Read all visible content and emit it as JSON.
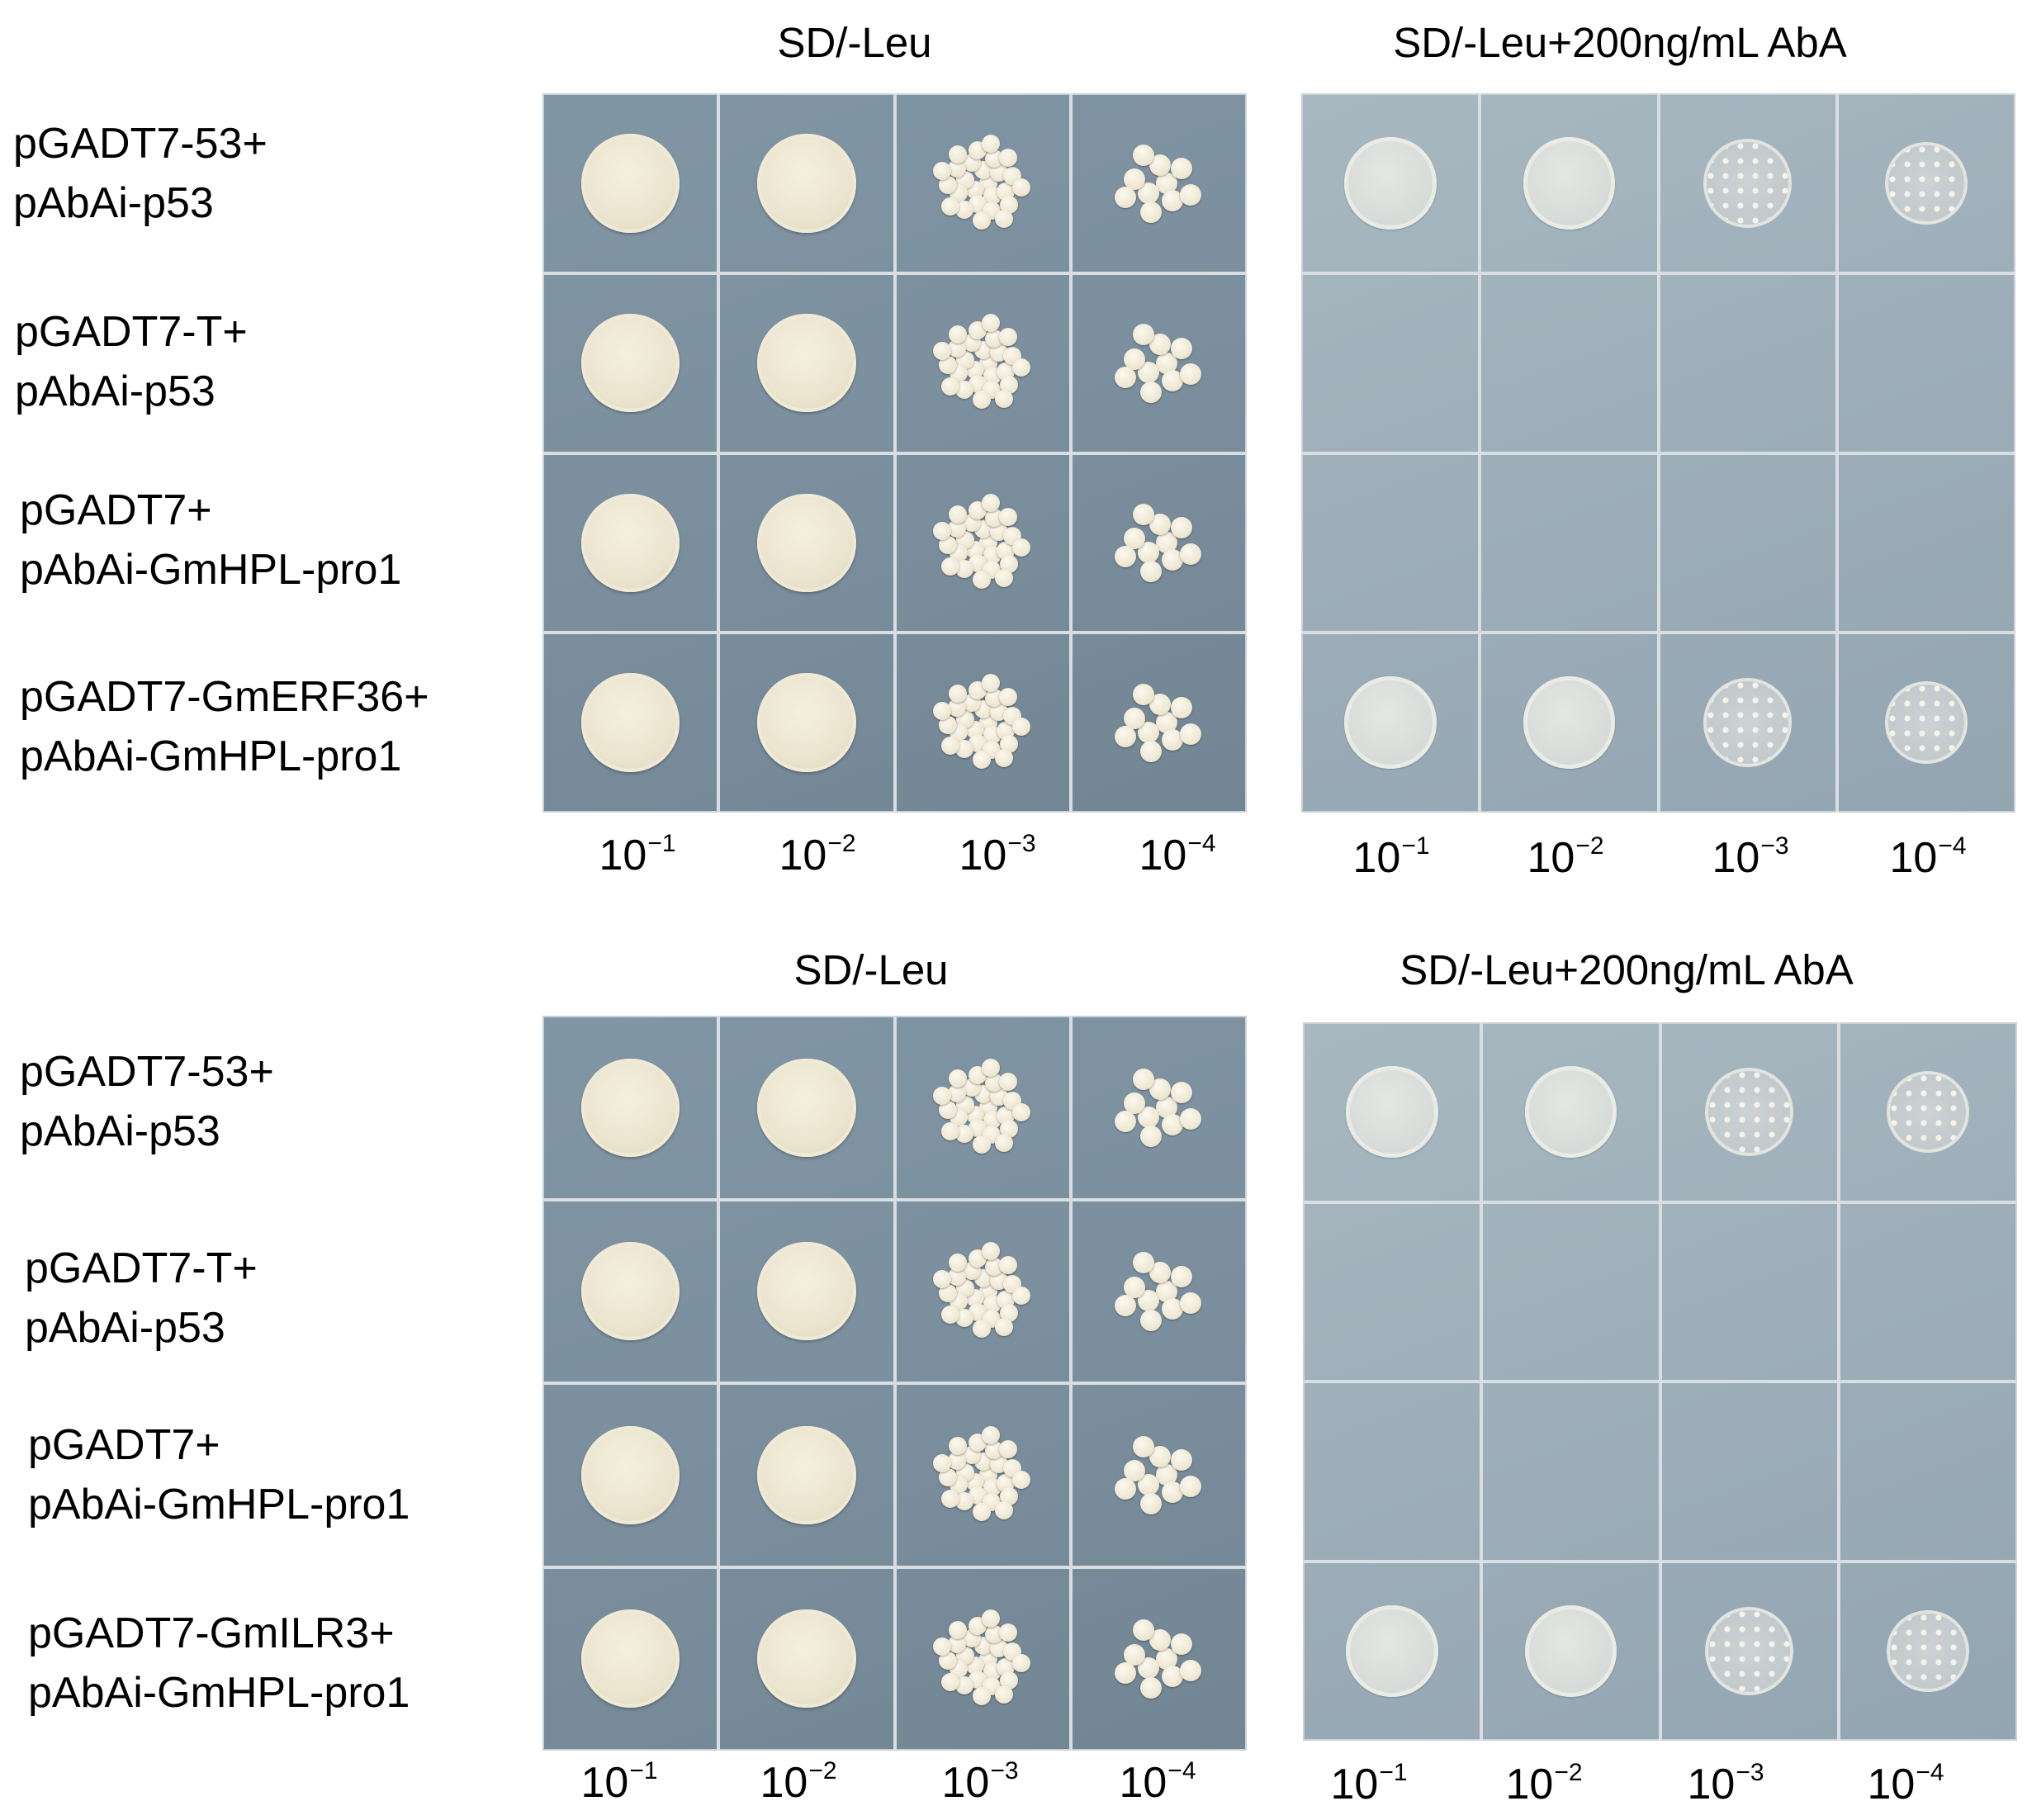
{
  "panels": [
    {
      "left_title": "SD/-Leu",
      "right_title": "SD/-Leu+200ng/mL AbA",
      "rows": [
        {
          "line1": "pGADT7-53+",
          "line2": "pAbAi-p53"
        },
        {
          "line1": "pGADT7-T+",
          "line2": "pAbAi-p53"
        },
        {
          "line1": "pGADT7+",
          "line2": "pAbAi-GmHPL-pro1"
        },
        {
          "line1": "pGADT7-GmERF36+",
          "line2": "pAbAi-GmHPL-pro1"
        }
      ],
      "right_growth": [
        true,
        false,
        false,
        true
      ]
    },
    {
      "left_title": "SD/-Leu",
      "right_title": "SD/-Leu+200ng/mL AbA",
      "rows": [
        {
          "line1": "pGADT7-53+",
          "line2": "pAbAi-p53"
        },
        {
          "line1": "pGADT7-T+",
          "line2": "pAbAi-p53"
        },
        {
          "line1": "pGADT7+",
          "line2": "pAbAi-GmHPL-pro1"
        },
        {
          "line1": "pGADT7-GmILR3+",
          "line2": "pAbAi-GmHPL-pro1"
        }
      ],
      "right_growth": [
        true,
        false,
        false,
        true
      ]
    }
  ],
  "dilutions": [
    {
      "base": "10",
      "exp": "−1"
    },
    {
      "base": "10",
      "exp": "−2"
    },
    {
      "base": "10",
      "exp": "−3"
    },
    {
      "base": "10",
      "exp": "−4"
    }
  ]
}
